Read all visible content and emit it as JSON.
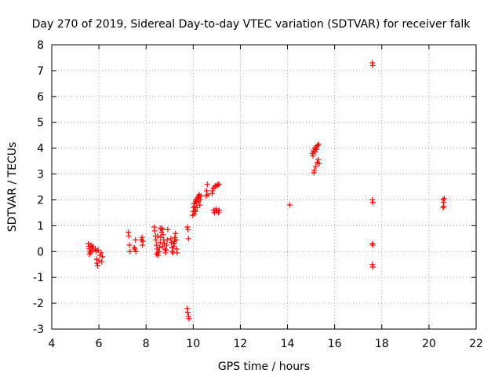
{
  "chart_data": {
    "type": "scatter",
    "title": "Day 270 of 2019, Sidereal Day-to-day VTEC variation (SDTVAR) for receiver falk",
    "xlabel": "GPS time / hours",
    "ylabel": "SDTVAR / TECUs",
    "xlim": [
      4,
      22
    ],
    "ylim": [
      -3,
      8
    ],
    "xticks": [
      4,
      6,
      8,
      10,
      12,
      14,
      16,
      18,
      20,
      22
    ],
    "yticks": [
      -3,
      -2,
      -1,
      0,
      1,
      2,
      3,
      4,
      5,
      6,
      7,
      8
    ],
    "grid": true,
    "marker": "plus",
    "color": "#ff0000",
    "series": [
      {
        "name": "SDTVAR",
        "points": [
          [
            5.55,
            0.3
          ],
          [
            5.57,
            0.2
          ],
          [
            5.6,
            0.1
          ],
          [
            5.62,
            0.0
          ],
          [
            5.65,
            -0.05
          ],
          [
            5.67,
            0.25
          ],
          [
            5.7,
            0.15
          ],
          [
            5.72,
            0.05
          ],
          [
            5.75,
            0.2
          ],
          [
            5.6,
            -0.1
          ],
          [
            5.85,
            0.1
          ],
          [
            5.88,
            0.0
          ],
          [
            5.9,
            -0.3
          ],
          [
            5.92,
            -0.45
          ],
          [
            5.95,
            -0.55
          ],
          [
            5.97,
            0.05
          ],
          [
            6.0,
            -0.35
          ],
          [
            6.05,
            -0.15
          ],
          [
            6.1,
            -0.05
          ],
          [
            6.12,
            -0.4
          ],
          [
            6.15,
            -0.2
          ],
          [
            7.25,
            0.75
          ],
          [
            7.27,
            0.6
          ],
          [
            7.3,
            0.25
          ],
          [
            7.32,
            0.0
          ],
          [
            7.5,
            0.15
          ],
          [
            7.53,
            0.1
          ],
          [
            7.55,
            0.45
          ],
          [
            7.57,
            0.0
          ],
          [
            7.8,
            0.45
          ],
          [
            7.83,
            0.55
          ],
          [
            7.85,
            0.25
          ],
          [
            7.87,
            0.4
          ],
          [
            8.35,
            0.95
          ],
          [
            8.37,
            0.8
          ],
          [
            8.4,
            0.6
          ],
          [
            8.42,
            0.45
          ],
          [
            8.45,
            0.25
          ],
          [
            8.47,
            0.1
          ],
          [
            8.5,
            -0.05
          ],
          [
            8.52,
            -0.15
          ],
          [
            8.55,
            0.0
          ],
          [
            8.57,
            0.15
          ],
          [
            8.6,
            0.35
          ],
          [
            8.62,
            0.55
          ],
          [
            8.65,
            0.75
          ],
          [
            8.67,
            0.9
          ],
          [
            8.7,
            0.85
          ],
          [
            8.72,
            0.65
          ],
          [
            8.75,
            0.45
          ],
          [
            8.77,
            0.3
          ],
          [
            8.8,
            0.1
          ],
          [
            8.82,
            -0.05
          ],
          [
            8.85,
            0.05
          ],
          [
            8.87,
            0.25
          ],
          [
            8.9,
            0.45
          ],
          [
            8.92,
            0.85
          ],
          [
            8.5,
            0.6
          ],
          [
            8.6,
            0.9
          ],
          [
            8.7,
            0.2
          ],
          [
            8.45,
            -0.1
          ],
          [
            9.05,
            0.5
          ],
          [
            9.07,
            0.35
          ],
          [
            9.1,
            0.15
          ],
          [
            9.12,
            0.0
          ],
          [
            9.15,
            -0.05
          ],
          [
            9.17,
            0.2
          ],
          [
            9.2,
            0.4
          ],
          [
            9.22,
            0.55
          ],
          [
            9.25,
            0.7
          ],
          [
            9.27,
            0.45
          ],
          [
            9.3,
            0.1
          ],
          [
            9.32,
            -0.05
          ],
          [
            9.2,
            0.3
          ],
          [
            9.75,
            0.95
          ],
          [
            9.78,
            0.85
          ],
          [
            9.8,
            0.5
          ],
          [
            9.75,
            -2.2
          ],
          [
            9.77,
            -2.35
          ],
          [
            9.8,
            -2.5
          ],
          [
            9.82,
            -2.6
          ],
          [
            9.98,
            1.4
          ],
          [
            10.0,
            1.55
          ],
          [
            10.02,
            1.7
          ],
          [
            10.04,
            1.85
          ],
          [
            10.06,
            1.75
          ],
          [
            10.08,
            1.6
          ],
          [
            10.1,
            1.95
          ],
          [
            10.12,
            2.0
          ],
          [
            10.14,
            1.9
          ],
          [
            10.16,
            1.7
          ],
          [
            10.18,
            2.05
          ],
          [
            10.2,
            2.1
          ],
          [
            10.22,
            1.95
          ],
          [
            10.24,
            2.15
          ],
          [
            10.26,
            2.2
          ],
          [
            10.28,
            1.8
          ],
          [
            10.3,
            2.0
          ],
          [
            10.33,
            2.15
          ],
          [
            10.05,
            1.45
          ],
          [
            10.1,
            1.55
          ],
          [
            10.55,
            2.15
          ],
          [
            10.57,
            2.35
          ],
          [
            10.6,
            2.6
          ],
          [
            10.62,
            2.2
          ],
          [
            10.8,
            2.25
          ],
          [
            10.82,
            2.35
          ],
          [
            10.85,
            2.45
          ],
          [
            10.87,
            1.6
          ],
          [
            10.9,
            1.5
          ],
          [
            10.92,
            2.5
          ],
          [
            10.95,
            2.55
          ],
          [
            10.97,
            1.65
          ],
          [
            11.0,
            1.55
          ],
          [
            11.02,
            2.55
          ],
          [
            11.05,
            2.6
          ],
          [
            11.07,
            1.5
          ],
          [
            11.1,
            1.6
          ],
          [
            11.1,
            2.6
          ],
          [
            14.1,
            1.8
          ],
          [
            15.05,
            3.8
          ],
          [
            15.08,
            3.7
          ],
          [
            15.1,
            3.9
          ],
          [
            15.12,
            3.05
          ],
          [
            15.14,
            3.15
          ],
          [
            15.16,
            4.0
          ],
          [
            15.18,
            3.85
          ],
          [
            15.2,
            3.3
          ],
          [
            15.22,
            4.05
          ],
          [
            15.24,
            3.95
          ],
          [
            15.26,
            3.45
          ],
          [
            15.28,
            4.1
          ],
          [
            15.3,
            3.55
          ],
          [
            15.32,
            4.15
          ],
          [
            15.34,
            3.4
          ],
          [
            17.6,
            7.3
          ],
          [
            17.62,
            7.2
          ],
          [
            17.6,
            2.0
          ],
          [
            17.62,
            1.9
          ],
          [
            17.6,
            0.3
          ],
          [
            17.62,
            0.25
          ],
          [
            17.6,
            -0.5
          ],
          [
            17.62,
            -0.6
          ],
          [
            20.6,
            2.0
          ],
          [
            20.62,
            1.9
          ],
          [
            20.65,
            2.05
          ],
          [
            20.6,
            1.7
          ],
          [
            20.63,
            1.75
          ]
        ]
      }
    ]
  }
}
